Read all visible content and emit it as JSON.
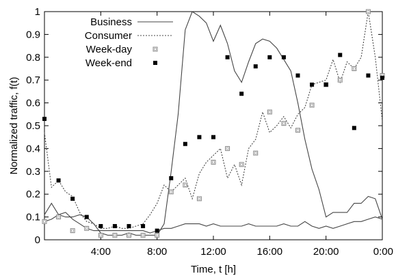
{
  "chart_data": {
    "type": "line",
    "xlabel": "Time, t [h]",
    "ylabel": "Normalized traffic, f(t)",
    "xlim": [
      0,
      24
    ],
    "ylim": [
      0,
      1
    ],
    "x_ticks": [
      {
        "value": 4,
        "label": "4:00"
      },
      {
        "value": 8,
        "label": "8:00"
      },
      {
        "value": 12,
        "label": "12:00"
      },
      {
        "value": 16,
        "label": "16:00"
      },
      {
        "value": 20,
        "label": "20:00"
      },
      {
        "value": 24,
        "label": "0:00"
      }
    ],
    "y_ticks": [
      {
        "value": 0,
        "label": "0"
      },
      {
        "value": 0.1,
        "label": "0.1"
      },
      {
        "value": 0.2,
        "label": "0.2"
      },
      {
        "value": 0.3,
        "label": "0.3"
      },
      {
        "value": 0.4,
        "label": "0.4"
      },
      {
        "value": 0.5,
        "label": "0.5"
      },
      {
        "value": 0.6,
        "label": "0.6"
      },
      {
        "value": 0.7,
        "label": "0.7"
      },
      {
        "value": 0.8,
        "label": "0.8"
      },
      {
        "value": 0.9,
        "label": "0.9"
      },
      {
        "value": 1,
        "label": "1"
      }
    ],
    "legend_position": "top-left",
    "grid": false,
    "series": [
      {
        "name": "Business",
        "style": "solid",
        "color": "#444444",
        "x": [
          0,
          0.5,
          1,
          1.5,
          2,
          2.5,
          3,
          3.5,
          4,
          4.5,
          5,
          5.5,
          6,
          6.5,
          7,
          7.5,
          8,
          8.5,
          9,
          9.5,
          10,
          10.5,
          11,
          11.5,
          12,
          12.5,
          13,
          13.5,
          14,
          14.5,
          15,
          15.5,
          16,
          16.5,
          17,
          17.5,
          18,
          18.5,
          19,
          19.5,
          20,
          20.5,
          21,
          21.5,
          22,
          22.5,
          23,
          23.5,
          24
        ],
        "y": [
          0.11,
          0.16,
          0.11,
          0.1,
          0.1,
          0.11,
          0.1,
          0.07,
          0.03,
          0.02,
          0.02,
          0.02,
          0.03,
          0.02,
          0.02,
          0.02,
          0.02,
          0.07,
          0.3,
          0.55,
          0.92,
          1.0,
          0.98,
          0.95,
          0.87,
          0.94,
          0.86,
          0.74,
          0.69,
          0.78,
          0.86,
          0.88,
          0.87,
          0.84,
          0.79,
          0.74,
          0.6,
          0.44,
          0.31,
          0.22,
          0.1,
          0.12,
          0.12,
          0.12,
          0.16,
          0.16,
          0.19,
          0.18,
          0.09
        ]
      },
      {
        "name": "Consumer",
        "style": "dotted",
        "color": "#444444",
        "x": [
          0,
          0.5,
          1,
          1.5,
          2,
          2.5,
          3,
          3.5,
          4,
          4.5,
          5,
          5.5,
          6,
          6.5,
          7,
          7.5,
          8,
          8.5,
          9,
          9.5,
          10,
          10.5,
          11,
          11.5,
          12,
          12.5,
          13,
          13.5,
          14,
          14.5,
          15,
          15.5,
          16,
          16.5,
          17,
          17.5,
          18,
          18.5,
          19,
          19.5,
          20,
          20.5,
          21,
          21.5,
          22,
          22.5,
          23,
          23.5,
          24
        ],
        "y": [
          0.47,
          0.23,
          0.26,
          0.21,
          0.19,
          0.12,
          0.08,
          0.07,
          0.05,
          0.05,
          0.06,
          0.05,
          0.05,
          0.06,
          0.07,
          0.11,
          0.16,
          0.24,
          0.21,
          0.24,
          0.27,
          0.18,
          0.29,
          0.34,
          0.37,
          0.4,
          0.27,
          0.33,
          0.24,
          0.4,
          0.44,
          0.56,
          0.47,
          0.5,
          0.54,
          0.49,
          0.55,
          0.58,
          0.68,
          0.69,
          0.7,
          0.79,
          0.69,
          0.78,
          0.75,
          0.8,
          1.0,
          0.8,
          0.52
        ]
      },
      {
        "name": "Week-day",
        "style": "open-square",
        "color": "#888888",
        "x": [
          0,
          1,
          2,
          3,
          4,
          5,
          6,
          7,
          8,
          9,
          10,
          11,
          12,
          13,
          14,
          15,
          16,
          17,
          18,
          19,
          20,
          21,
          22,
          23,
          24
        ],
        "y": [
          0.08,
          0.1,
          0.04,
          0.05,
          0.02,
          0.02,
          0.02,
          0.02,
          0.02,
          0.21,
          0.24,
          0.18,
          0.34,
          0.4,
          0.33,
          0.38,
          0.56,
          0.51,
          0.48,
          0.59,
          0.68,
          0.7,
          0.75,
          1.0,
          0.72
        ]
      },
      {
        "name": "Week-end",
        "style": "filled-square",
        "color": "#000000",
        "x": [
          0,
          1,
          2,
          3,
          4,
          5,
          6,
          7,
          8,
          9,
          10,
          11,
          12,
          13,
          14,
          15,
          16,
          17,
          18,
          19,
          20,
          21,
          22,
          23,
          24
        ],
        "y": [
          0.53,
          0.26,
          0.18,
          0.1,
          0.06,
          0.06,
          0.06,
          0.06,
          0.04,
          0.27,
          0.42,
          0.45,
          0.45,
          0.8,
          0.64,
          0.76,
          0.8,
          0.8,
          0.72,
          0.68,
          0.68,
          0.81,
          0.49,
          0.72,
          0.71
        ]
      },
      {
        "name": "",
        "style": "solid",
        "color": "#444444",
        "x": [
          0,
          0.5,
          1,
          1.5,
          2,
          2.5,
          3,
          3.5,
          4,
          4.5,
          5,
          5.5,
          6,
          6.5,
          7,
          7.5,
          8,
          8.5,
          9,
          9.5,
          10,
          10.5,
          11,
          11.5,
          12,
          12.5,
          13,
          13.5,
          14,
          14.5,
          15,
          15.5,
          16,
          16.5,
          17,
          17.5,
          18,
          18.5,
          19,
          19.5,
          20,
          20.5,
          21,
          21.5,
          22,
          22.5,
          23,
          23.5,
          24
        ],
        "y": [
          0.08,
          0.09,
          0.11,
          0.12,
          0.09,
          0.07,
          0.05,
          0.04,
          0.04,
          0.04,
          0.04,
          0.04,
          0.04,
          0.04,
          0.04,
          0.03,
          0.04,
          0.05,
          0.05,
          0.06,
          0.07,
          0.07,
          0.07,
          0.06,
          0.07,
          0.06,
          0.06,
          0.06,
          0.06,
          0.07,
          0.06,
          0.06,
          0.06,
          0.06,
          0.07,
          0.06,
          0.06,
          0.08,
          0.06,
          0.05,
          0.06,
          0.05,
          0.06,
          0.07,
          0.08,
          0.08,
          0.09,
          0.1,
          0.09
        ]
      }
    ]
  }
}
